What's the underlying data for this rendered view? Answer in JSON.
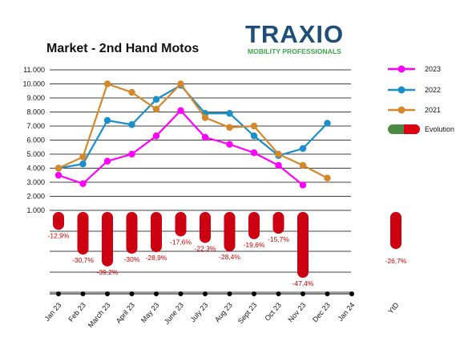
{
  "title": "Market - 2nd Hand Motos",
  "logo": {
    "word": "TRAXIO",
    "tagline": "MOBILITY PROFESSIONALS"
  },
  "chart_data": {
    "type": "line",
    "categories": [
      "Jan 23",
      "Feb 23",
      "March 23",
      "April 23",
      "May 23",
      "June 23",
      "July 23",
      "Aug 23",
      "Sept 23",
      "Oct 23",
      "Nov 23",
      "Dec 23",
      "Jan 24"
    ],
    "ylim": [
      1000,
      11000
    ],
    "yticks": [
      "1.000",
      "2.000",
      "3.000",
      "4.000",
      "5.000",
      "6.000",
      "7.000",
      "8.000",
      "9.000",
      "10.000",
      "11.000"
    ],
    "ytick_values": [
      1000,
      2000,
      3000,
      4000,
      5000,
      6000,
      7000,
      8000,
      9000,
      10000,
      11000
    ],
    "legend_position": "right",
    "series": [
      {
        "name": "2023",
        "color": "#ff00ff",
        "values": [
          3500,
          2900,
          4500,
          5000,
          6300,
          8100,
          6200,
          5700,
          5100,
          4200,
          2800,
          null,
          null
        ]
      },
      {
        "name": "2022",
        "color": "#1a8fc9",
        "values": [
          4000,
          4300,
          7400,
          7100,
          8900,
          9900,
          7900,
          7900,
          6300,
          4900,
          5400,
          7200,
          null
        ]
      },
      {
        "name": "2021",
        "color": "#d4882a",
        "values": [
          4000,
          4800,
          10000,
          9400,
          8200,
          10000,
          7600,
          6900,
          7000,
          5000,
          4200,
          3300,
          null
        ]
      }
    ],
    "evolution": {
      "name": "Evolution",
      "color": "#cc0011",
      "values": [
        -12.9,
        -30.7,
        -39.2,
        -30.0,
        -28.9,
        -17.6,
        -22.3,
        -28.4,
        -19.6,
        -15.7,
        -47.4
      ],
      "labels": [
        "-12,9%",
        "-30,7%",
        "-39,2%",
        "-30%",
        "-28,9%",
        "-17,6%",
        "-22,3%",
        "-28,4%",
        "-19,6%",
        "-15,7%",
        "-47,4%"
      ],
      "ytd": {
        "category": "YtD",
        "value": -26.7,
        "label": "-26,7%"
      }
    }
  }
}
